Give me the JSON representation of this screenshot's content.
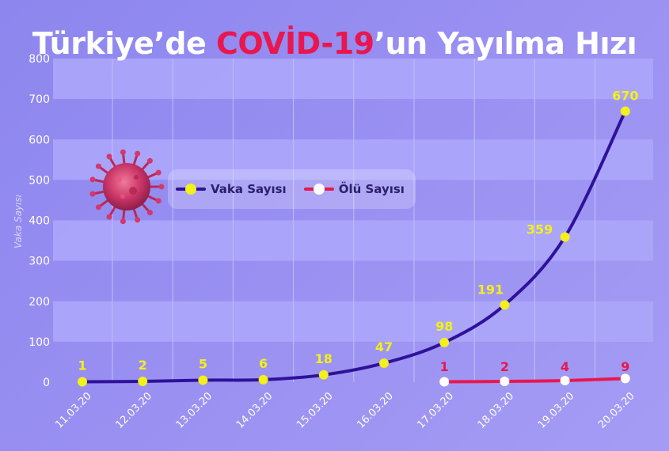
{
  "title": {
    "before": "Türkiye’de ",
    "highlight": "COVİD-19",
    "after": "’un Yayılma Hızı"
  },
  "colors": {
    "background": "#9a90f2",
    "band": "#aca6fb",
    "case_line": "#2e129a",
    "case_marker": "#f3f01b",
    "death_line": "#e8174f",
    "death_marker": "#ffffff",
    "highlight": "#e8174f"
  },
  "legend": {
    "case_label": "Vaka Sayısı",
    "death_label": "Ölü Sayısı"
  },
  "decor": {
    "virus_icon": "coronavirus-icon"
  },
  "chart_data": {
    "type": "line",
    "title": "Türkiye’de COVİD-19’un Yayılma Hızı",
    "ylabel": "Vaka Sayısı",
    "xlabel": "",
    "ylim": [
      0,
      800
    ],
    "yticks": [
      0,
      100,
      200,
      300,
      400,
      500,
      600,
      700,
      800
    ],
    "grid": true,
    "legend_position": "top-left",
    "categories": [
      "11.03.20",
      "12.03.20",
      "13.03.20",
      "14.03.20",
      "15.03.20",
      "16.03.20",
      "17.03.20",
      "18.03.20",
      "19.03.20",
      "20.03.20"
    ],
    "series": [
      {
        "name": "Vaka Sayısı",
        "values": [
          1,
          2,
          5,
          6,
          18,
          47,
          98,
          191,
          359,
          670
        ]
      },
      {
        "name": "Ölü Sayısı",
        "values": [
          null,
          null,
          null,
          null,
          null,
          null,
          1,
          2,
          4,
          9
        ]
      }
    ]
  }
}
